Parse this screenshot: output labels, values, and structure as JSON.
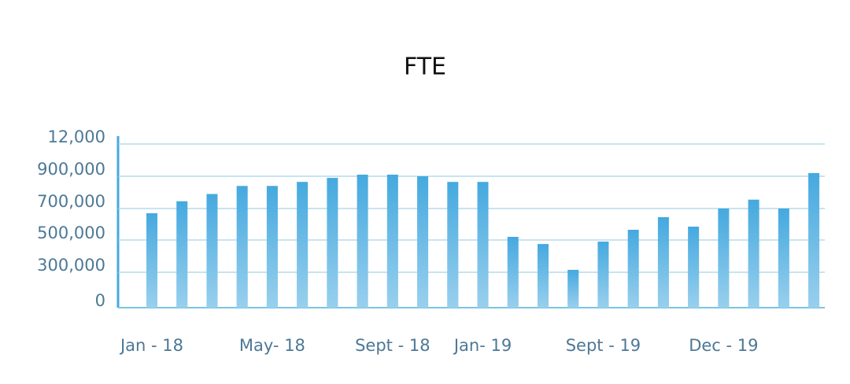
{
  "chart_data": {
    "type": "bar",
    "title": "FTE",
    "categories": [
      "Jan - 18",
      null,
      null,
      null,
      "May- 18",
      null,
      null,
      null,
      "Sept - 18",
      null,
      null,
      "Jan- 19",
      null,
      null,
      null,
      "Sept - 19",
      null,
      null,
      null,
      "Dec - 19",
      null,
      null,
      null
    ],
    "values": [
      670000,
      745000,
      790000,
      840000,
      840000,
      865000,
      890000,
      910000,
      910000,
      900000,
      865000,
      865000,
      520000,
      475000,
      315000,
      490000,
      565000,
      645000,
      585000,
      700000,
      755000,
      700000,
      920000
    ],
    "color": "#45a9df",
    "yticks": [
      0,
      {
        "value": 300000,
        "label": "300,000"
      },
      {
        "value": 500000,
        "label": "500,000"
      },
      {
        "value": 700000,
        "label": "700,000"
      },
      {
        "value": 900000,
        "label": "900,000"
      },
      {
        "value": 12000,
        "label": "12,000"
      }
    ],
    "grid": true
  }
}
